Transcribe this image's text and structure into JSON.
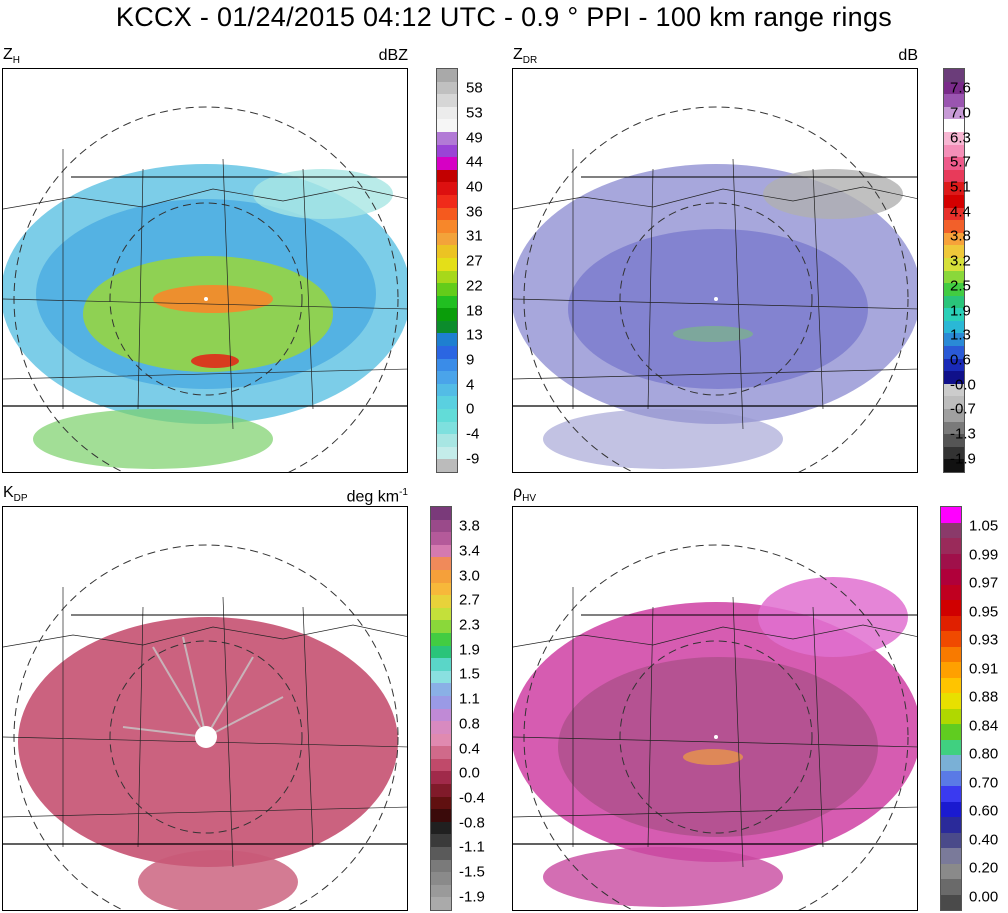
{
  "title": "KCCX - 01/24/2015 04:12 UTC - 0.9 ° PPI - 100 km range rings",
  "panels": [
    {
      "id": "zh",
      "label_main": "Z",
      "label_sub": "H",
      "unit": "dBZ",
      "unit_sup": "",
      "ticks": [
        "58",
        "53",
        "49",
        "44",
        "40",
        "36",
        "31",
        "27",
        "22",
        "18",
        "13",
        "9",
        "4",
        "0",
        "-4",
        "-9"
      ],
      "colors": [
        "#a9a9a9",
        "#c0c0c0",
        "#d6d6d6",
        "#ececec",
        "#f6f6f6",
        "#b27ad6",
        "#9a44d6",
        "#d600c4",
        "#c20000",
        "#dd1010",
        "#f02b1a",
        "#f55a1e",
        "#f7872a",
        "#f3a33a",
        "#ecc323",
        "#e4df18",
        "#a7d81a",
        "#63cc1a",
        "#21bf21",
        "#0a9d0a",
        "#0c8c2c",
        "#1e7fd0",
        "#2b66e2",
        "#3a8ce8",
        "#4aa4ea",
        "#53bce6",
        "#5ad0e0",
        "#62dcd8",
        "#7ee0de",
        "#a8e6e3",
        "#c4ecea",
        "#bbbbbb"
      ]
    },
    {
      "id": "zdr",
      "label_main": "Z",
      "label_sub": "DR",
      "unit": "dB",
      "unit_sup": "",
      "ticks": [
        "7.6",
        "7.0",
        "6.3",
        "5.7",
        "5.1",
        "4.4",
        "3.8",
        "3.2",
        "2.5",
        "1.9",
        "1.3",
        "0.6",
        "-0.0",
        "-0.7",
        "-1.3",
        "-1.9"
      ],
      "colors": [
        "#6b3d7a",
        "#7a2b8a",
        "#9a55b0",
        "#c79ad6",
        "#ffffff",
        "#f7b6d2",
        "#f48fb8",
        "#ee5a8a",
        "#e83a5a",
        "#dd1a1a",
        "#d40000",
        "#e8302a",
        "#f2602a",
        "#f7a23a",
        "#efc83a",
        "#d6e03a",
        "#8ad83a",
        "#42cc42",
        "#2ac47a",
        "#2ad0b8",
        "#2ab8d6",
        "#2a8ad6",
        "#2a5ad6",
        "#1a2ab8",
        "#10108a",
        "#cccccc",
        "#bdbdbd",
        "#a0a0a0",
        "#7a7a7a",
        "#555555",
        "#333333",
        "#111111"
      ]
    },
    {
      "id": "kdp",
      "label_main": "K",
      "label_sub": "DP",
      "unit": "deg km",
      "unit_sup": "-1",
      "ticks": [
        "3.8",
        "3.4",
        "3.0",
        "2.7",
        "2.3",
        "1.9",
        "1.5",
        "1.1",
        "0.8",
        "0.4",
        "0.0",
        "-0.4",
        "-0.8",
        "-1.1",
        "-1.5",
        "-1.9"
      ],
      "colors": [
        "#7a3a7a",
        "#9a4a8a",
        "#b45a9a",
        "#d47ab0",
        "#f08a5a",
        "#f5a03a",
        "#f7b83a",
        "#e8d23a",
        "#c4e03a",
        "#8ad83a",
        "#42cc42",
        "#2ac47a",
        "#5ad6c8",
        "#8ae0e0",
        "#8ab0e6",
        "#9a9ae6",
        "#c08ad6",
        "#d88ac0",
        "#e08ab0",
        "#d06a8a",
        "#c04a6a",
        "#a02a4a",
        "#801a2a",
        "#601010",
        "#3a0a0a",
        "#202020",
        "#3a3a3a",
        "#5a5a5a",
        "#7a7a7a",
        "#8a8a8a",
        "#9a9a9a",
        "#aaaaaa"
      ]
    },
    {
      "id": "rhohv",
      "label_main": "ρ",
      "label_sub": "HV",
      "unit": "",
      "unit_sup": "",
      "ticks": [
        "1.05",
        "0.99",
        "0.97",
        "0.95",
        "0.93",
        "0.91",
        "0.88",
        "0.84",
        "0.80",
        "0.70",
        "0.60",
        "0.40",
        "0.20",
        "0.00"
      ],
      "colors": [
        "#ff00ff",
        "#8a3a6a",
        "#9a2a5a",
        "#a0104a",
        "#b0003a",
        "#c00020",
        "#d00000",
        "#e02000",
        "#f04a00",
        "#f87a00",
        "#ffa000",
        "#ffc400",
        "#e8e000",
        "#b0d800",
        "#60cc20",
        "#40d080",
        "#7ab0d6",
        "#5a7ae6",
        "#3a3af0",
        "#1a1ad0",
        "#2a2a9a",
        "#4a4a8a",
        "#7a7a9a",
        "#8a8a8a",
        "#6a6a6a",
        "#4a4a4a"
      ]
    }
  ]
}
